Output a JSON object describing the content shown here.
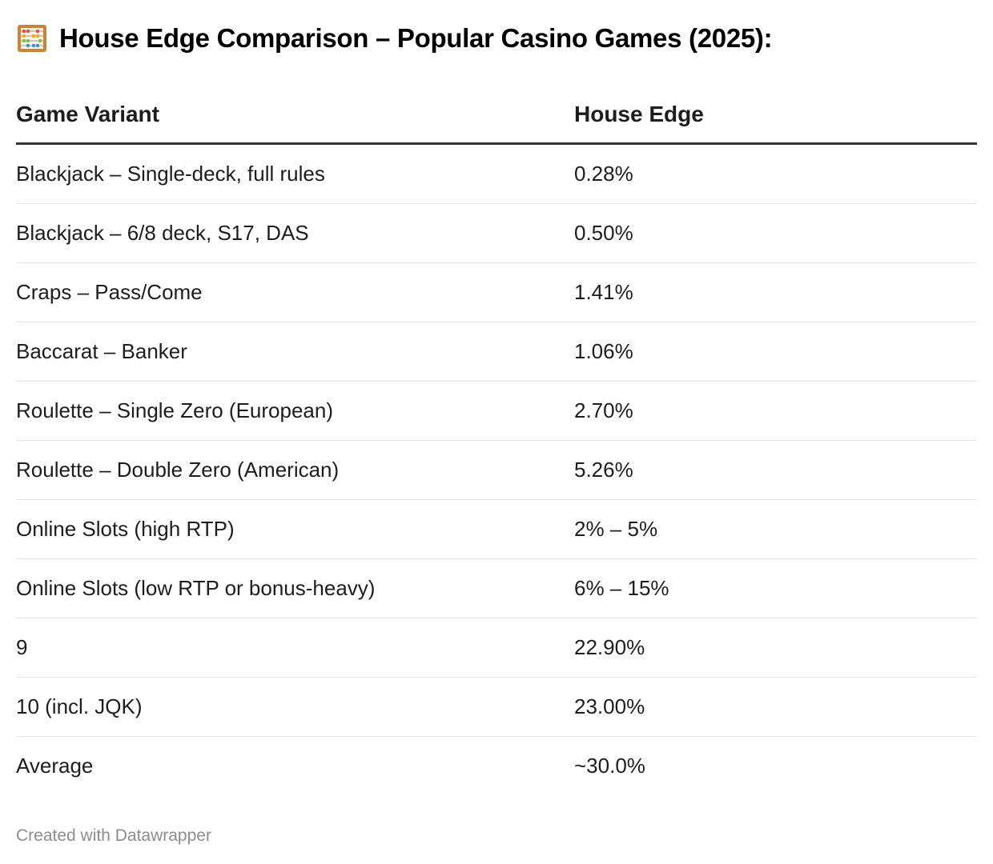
{
  "header": {
    "title": "House Edge Comparison – Popular Casino Games (2025):",
    "icon": "abacus-icon"
  },
  "chart_data": {
    "type": "table",
    "columns": [
      "Game Variant",
      "House Edge"
    ],
    "rows": [
      {
        "variant": "Blackjack – Single-deck, full rules",
        "edge": "0.28%"
      },
      {
        "variant": "Blackjack – 6/8 deck, S17, DAS",
        "edge": "0.50%"
      },
      {
        "variant": "Craps – Pass/Come",
        "edge": "1.41%"
      },
      {
        "variant": "Baccarat – Banker",
        "edge": "1.06%"
      },
      {
        "variant": "Roulette – Single Zero (European)",
        "edge": "2.70%"
      },
      {
        "variant": "Roulette – Double Zero (American)",
        "edge": "5.26%"
      },
      {
        "variant": "Online Slots (high RTP)",
        "edge": "2% – 5%"
      },
      {
        "variant": "Online Slots (low RTP or bonus-heavy)",
        "edge": "6% – 15%"
      },
      {
        "variant": "9",
        "edge": "22.90%"
      },
      {
        "variant": "10 (incl. JQK)",
        "edge": "23.00%"
      },
      {
        "variant": "Average",
        "edge": "~30.0%"
      }
    ]
  },
  "footer": {
    "credit": "Created with Datawrapper"
  },
  "colors": {
    "text": "#1d1d1d",
    "header_rule": "#333333",
    "row_rule": "#e6e6e6",
    "footer_text": "#8c8c8c"
  }
}
